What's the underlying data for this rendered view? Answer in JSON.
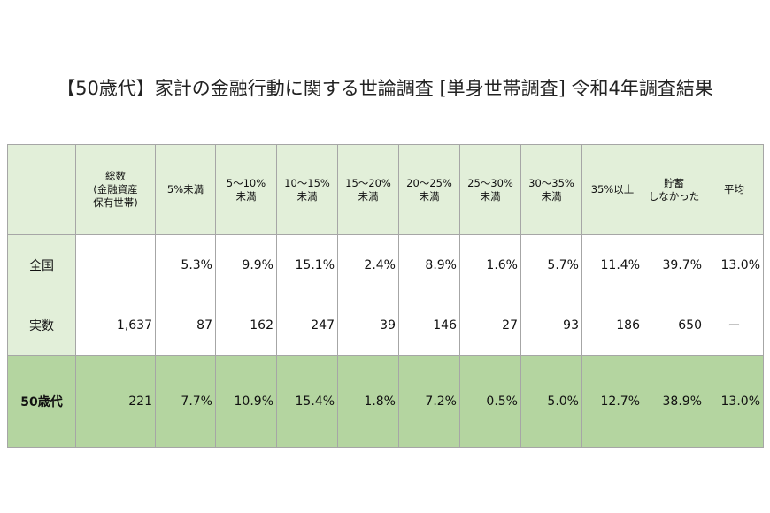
{
  "title": "【50歳代】家計の金融行動に関する世論調査 [単身世帯調査] 令和4年調査結果",
  "table": {
    "header": [
      "総数\n(金融資産\n保有世帯)",
      "5%未満",
      "5〜10%\n未満",
      "10〜15%\n未満",
      "15〜20%\n未満",
      "20〜25%\n未満",
      "25〜30%\n未満",
      "30〜35%\n未満",
      "35%以上",
      "貯蓄\nしなかった",
      "平均"
    ],
    "rows": [
      {
        "label": "全国",
        "values": [
          "5.3%",
          "9.9%",
          "15.1%",
          "2.4%",
          "8.9%",
          "1.6%",
          "5.7%",
          "11.4%",
          "39.7%",
          "13.0%"
        ]
      },
      {
        "label": "実数",
        "total": "1,637",
        "values": [
          "87",
          "162",
          "247",
          "39",
          "146",
          "27",
          "93",
          "186",
          "650",
          "ー"
        ]
      },
      {
        "label": "50歳代",
        "total": "221",
        "values": [
          "7.7%",
          "10.9%",
          "15.4%",
          "1.8%",
          "7.2%",
          "0.5%",
          "5.0%",
          "12.7%",
          "38.9%",
          "13.0%"
        ]
      }
    ]
  }
}
